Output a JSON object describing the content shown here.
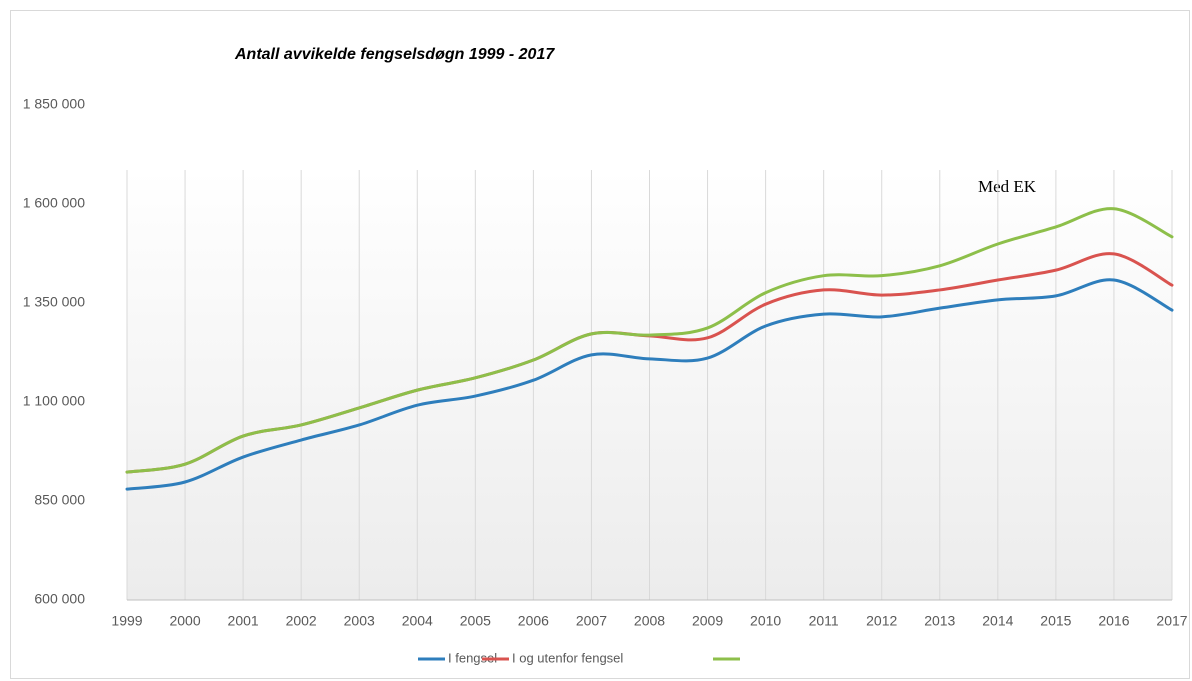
{
  "chart_data": {
    "type": "line",
    "title": "Antall avvikelde fengselsdøgn 1999 - 2017",
    "annotation": "Med EK",
    "categories": [
      "1999",
      "2000",
      "2001",
      "2002",
      "2003",
      "2004",
      "2005",
      "2006",
      "2007",
      "2008",
      "2009",
      "2010",
      "2011",
      "2012",
      "2013",
      "2014",
      "2015",
      "2016",
      "2017"
    ],
    "series": [
      {
        "name": "I  fengsel",
        "color": "#2e7ebc",
        "values": [
          880000,
          898000,
          961000,
          1004000,
          1042000,
          1092000,
          1115000,
          1155000,
          1219000,
          1209000,
          1211000,
          1292000,
          1322000,
          1315000,
          1337000,
          1358000,
          1368000,
          1408000,
          1332000
        ]
      },
      {
        "name": "I og utenfor fengsel",
        "color": "#d9534f",
        "values": [
          923000,
          943000,
          1014000,
          1042000,
          1085000,
          1130000,
          1161000,
          1206000,
          1272000,
          1267000,
          1262000,
          1347000,
          1383000,
          1370000,
          1383000,
          1408000,
          1433000,
          1474000,
          1395000
        ]
      },
      {
        "color": "#8dbf4a",
        "values": [
          923000,
          943000,
          1014000,
          1042000,
          1085000,
          1130000,
          1161000,
          1206000,
          1272000,
          1269000,
          1287000,
          1376000,
          1419000,
          1419000,
          1444000,
          1499000,
          1542000,
          1588000,
          1517000
        ]
      }
    ],
    "ylim": [
      600000,
      1850000
    ],
    "yticks": [
      {
        "value": 600000,
        "label": "600 000"
      },
      {
        "value": 850000,
        "label": "850 000"
      },
      {
        "value": 1100000,
        "label": "1 100 000"
      },
      {
        "value": 1350000,
        "label": "1 350 000"
      },
      {
        "value": 1600000,
        "label": "1 600 000"
      },
      {
        "value": 1850000,
        "label": "1 850 000"
      }
    ],
    "grid": true,
    "legend": "bottom"
  }
}
